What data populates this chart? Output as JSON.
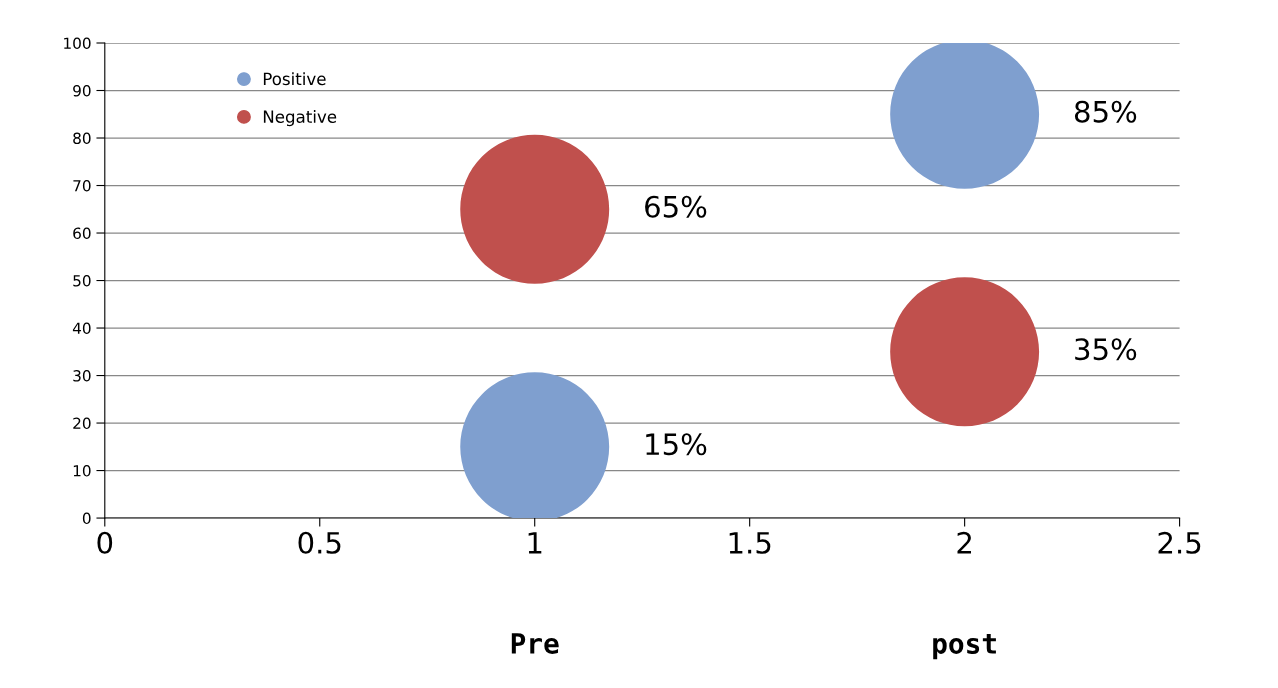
{
  "chart_data": {
    "type": "bubble",
    "xlim": [
      0,
      2.5
    ],
    "xticks": [
      0,
      0.5,
      1,
      1.5,
      2,
      2.5
    ],
    "ylim": [
      0,
      100
    ],
    "yticks": [
      0,
      10,
      20,
      30,
      40,
      50,
      60,
      70,
      80,
      90,
      100
    ],
    "grid": "y",
    "x": [
      1,
      2
    ],
    "legend": "top left",
    "series": [
      {
        "name": "Positive",
        "color": "#7f9fcf",
        "values": [
          15,
          85
        ],
        "sizes": [
          1,
          1
        ],
        "value_labels": [
          "15%",
          "85%"
        ]
      },
      {
        "name": "Negative",
        "color": "#c0504d",
        "values": [
          65,
          35
        ],
        "sizes": [
          1,
          1
        ],
        "value_labels": [
          "65%",
          "35%"
        ]
      }
    ],
    "annotations": [
      "Pre",
      "post"
    ]
  }
}
